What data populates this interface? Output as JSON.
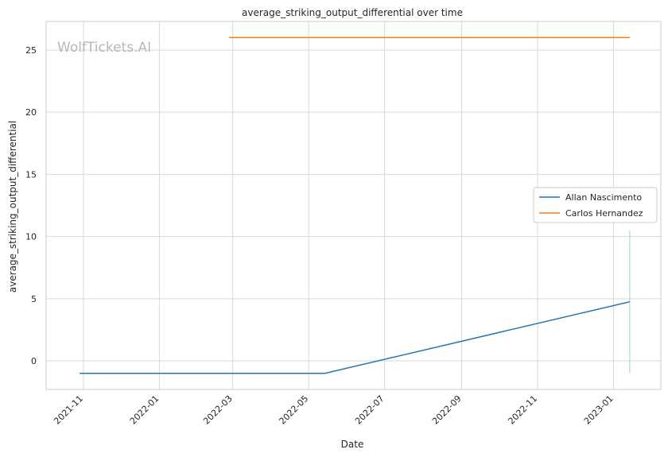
{
  "chart_data": {
    "type": "line",
    "title": "average_striking_output_differential over time",
    "xlabel": "Date",
    "ylabel": "average_striking_output_differential",
    "watermark": "WolfTickets.AI",
    "x_axis_type": "date",
    "xlim": [
      "2021-10-02",
      "2023-02-08"
    ],
    "ylim": [
      -2.3,
      27.3
    ],
    "x_ticks": [
      {
        "date": "2021-11-01",
        "label": "2021-11"
      },
      {
        "date": "2022-01-01",
        "label": "2022-01"
      },
      {
        "date": "2022-03-01",
        "label": "2022-03"
      },
      {
        "date": "2022-05-01",
        "label": "2022-05"
      },
      {
        "date": "2022-07-01",
        "label": "2022-07"
      },
      {
        "date": "2022-09-01",
        "label": "2022-09"
      },
      {
        "date": "2022-11-01",
        "label": "2022-11"
      },
      {
        "date": "2023-01-01",
        "label": "2023-01"
      }
    ],
    "y_ticks": [
      0,
      5,
      10,
      15,
      20,
      25
    ],
    "grid": true,
    "legend_position": "right",
    "series": [
      {
        "name": "Allan Nascimento",
        "color": "#1f77b4",
        "points": [
          {
            "x": "2021-10-29",
            "y": -1.0
          },
          {
            "x": "2022-05-14",
            "y": -1.0
          },
          {
            "x": "2023-01-14",
            "y": 4.75
          }
        ]
      },
      {
        "name": "Carlos Hernandez",
        "color": "#ff7f0e",
        "points": [
          {
            "x": "2022-02-26",
            "y": 26.0
          },
          {
            "x": "2023-01-14",
            "y": 26.0
          }
        ]
      }
    ],
    "vertical_range": {
      "x": "2023-01-14",
      "y_min": -1.0,
      "y_max": 10.5,
      "color": "#aacfcf"
    }
  }
}
